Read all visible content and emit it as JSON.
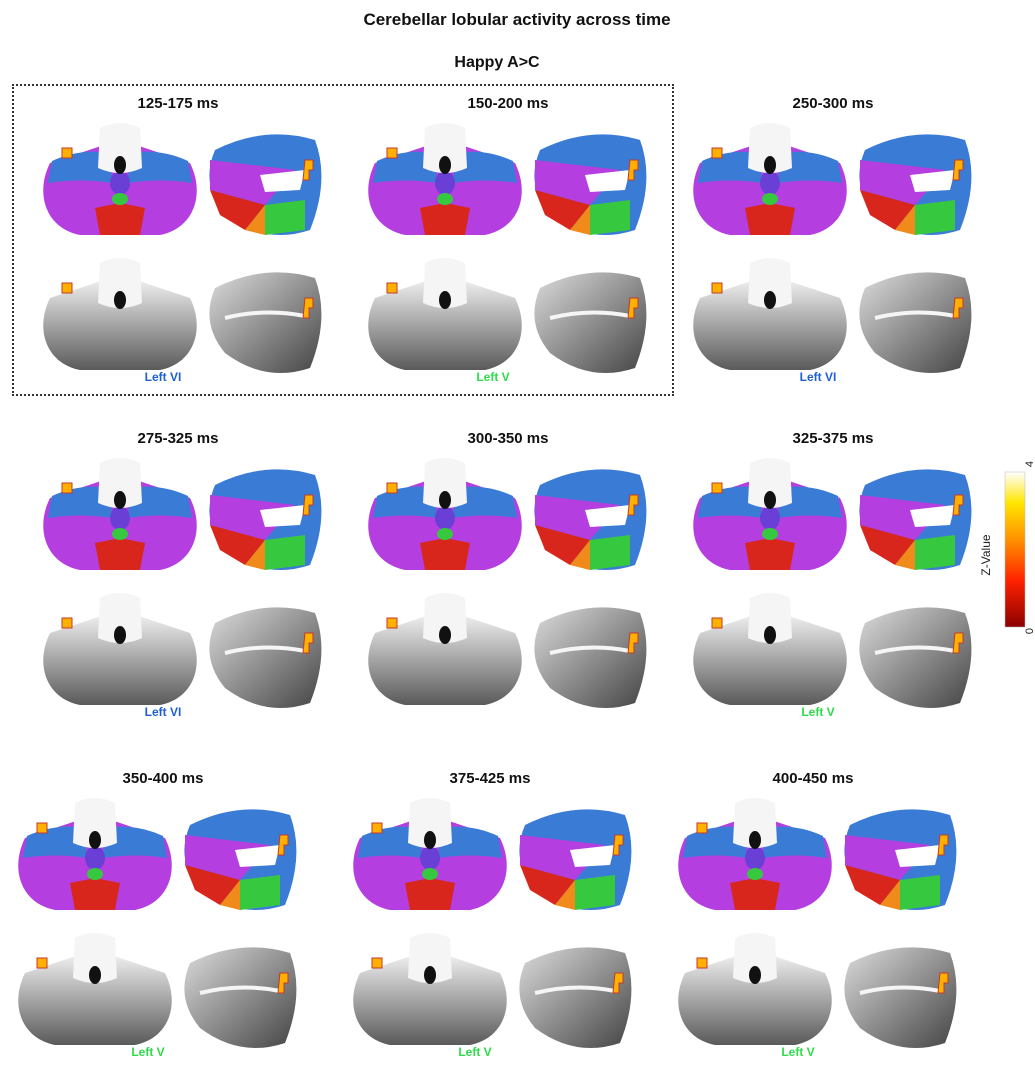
{
  "figure": {
    "title": "Cerebellar lobular activity across time",
    "condition": "Happy A>C"
  },
  "panels": [
    {
      "time": "125-175 ms",
      "lobule": "Left VI",
      "lobule_color": "#1f5fd0"
    },
    {
      "time": "150-200 ms",
      "lobule": "Left V",
      "lobule_color": "#2edb4a"
    },
    {
      "time": "250-300 ms",
      "lobule": "Left VI",
      "lobule_color": "#1f5fd0"
    },
    {
      "time": "275-325 ms",
      "lobule": "Left VI",
      "lobule_color": "#1f5fd0"
    },
    {
      "time": "300-350 ms",
      "lobule": "",
      "lobule_color": "#2edb4a"
    },
    {
      "time": "325-375 ms",
      "lobule": "Left V",
      "lobule_color": "#2edb4a"
    },
    {
      "time": "350-400 ms",
      "lobule": "Left V",
      "lobule_color": "#2edb4a"
    },
    {
      "time": "375-425 ms",
      "lobule": "Left V",
      "lobule_color": "#2edb4a"
    },
    {
      "time": "400-450 ms",
      "lobule": "Left V",
      "lobule_color": "#2edb4a"
    }
  ],
  "colorbar": {
    "label": "Z-Value",
    "min_label": "0",
    "max_label": "4",
    "colors": [
      "#8b0000",
      "#ff2200",
      "#ff8c00",
      "#ffe600",
      "#ffffff"
    ]
  },
  "atlas_colors": {
    "lobule_VI": "#3a7bd5",
    "crus_I": "#b43ee0",
    "lobule_V": "#36c940",
    "lobule_VIIIa": "#d9261c",
    "lobule_VIIb": "#f08a1a",
    "vermis": "#6a3fd6",
    "lobule_IV": "#d6e21a",
    "lobule_X": "#2fd1d1"
  }
}
